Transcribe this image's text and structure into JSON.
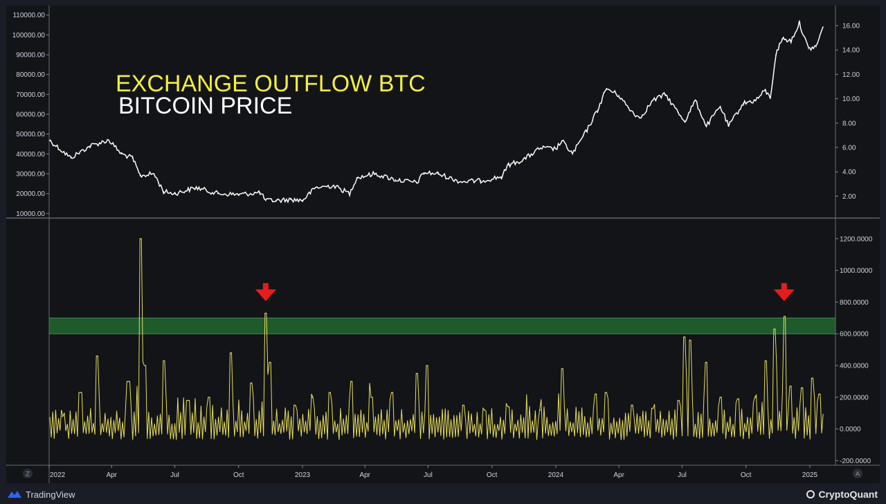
{
  "chart_data": [
    {
      "type": "line",
      "title": "BITCOIN PRICE",
      "series": [
        {
          "name": "BITCOIN PRICE",
          "color": "#ffffff",
          "x": [
            "2022-01-01",
            "2022-02-01",
            "2022-03-01",
            "2022-03-28",
            "2022-04-15",
            "2022-05-01",
            "2022-05-12",
            "2022-06-01",
            "2022-06-15",
            "2022-07-01",
            "2022-08-01",
            "2022-09-01",
            "2022-10-01",
            "2022-11-01",
            "2022-11-09",
            "2022-11-25",
            "2022-12-15",
            "2023-01-01",
            "2023-01-20",
            "2023-02-15",
            "2023-03-10",
            "2023-03-20",
            "2023-04-15",
            "2023-05-15",
            "2023-06-15",
            "2023-06-25",
            "2023-07-15",
            "2023-08-17",
            "2023-09-15",
            "2023-10-15",
            "2023-10-25",
            "2023-11-15",
            "2023-12-10",
            "2024-01-01",
            "2024-01-10",
            "2024-01-25",
            "2024-02-15",
            "2024-03-01",
            "2024-03-14",
            "2024-04-01",
            "2024-04-15",
            "2024-05-01",
            "2024-05-20",
            "2024-06-07",
            "2024-06-25",
            "2024-07-05",
            "2024-07-20",
            "2024-08-05",
            "2024-08-25",
            "2024-09-06",
            "2024-09-27",
            "2024-10-15",
            "2024-10-29",
            "2024-11-05",
            "2024-11-13",
            "2024-11-22",
            "2024-12-05",
            "2024-12-17",
            "2024-12-30",
            "2025-01-10",
            "2025-01-20"
          ],
          "values": [
            47000,
            38000,
            44000,
            47000,
            40000,
            38000,
            29000,
            30000,
            21000,
            20000,
            23000,
            20000,
            19500,
            20500,
            16500,
            16500,
            17000,
            16600,
            23000,
            24000,
            20000,
            28000,
            30000,
            27000,
            25500,
            30500,
            30000,
            26000,
            26500,
            28500,
            34500,
            37000,
            43000,
            42500,
            46500,
            40000,
            52000,
            62000,
            73000,
            69500,
            63000,
            58000,
            67000,
            70000,
            61000,
            56500,
            67000,
            54000,
            64000,
            54000,
            65500,
            67000,
            72000,
            68000,
            90000,
            98000,
            97000,
            106000,
            93000,
            94000,
            104000
          ]
        }
      ],
      "ylim": [
        8000,
        112000
      ],
      "yticks": [
        "10000.00",
        "20000.00",
        "30000.00",
        "40000.00",
        "50000.00",
        "60000.00",
        "70000.00",
        "80000.00",
        "90000.00",
        "100000.00",
        "110000.00"
      ],
      "yticks_right": [
        "2.00",
        "4.00",
        "6.00",
        "8.00",
        "10.00",
        "12.00",
        "14.00",
        "16.00"
      ]
    },
    {
      "type": "line",
      "title": "EXCHANGE OUTFLOW BTC",
      "series": [
        {
          "name": "EXCHANGE OUTFLOW BTC",
          "color": "#e8df5e",
          "peaks": [
            {
              "x": "2022-01-20",
              "y": 80
            },
            {
              "x": "2022-02-15",
              "y": 230
            },
            {
              "x": "2022-03-12",
              "y": 460
            },
            {
              "x": "2022-04-25",
              "y": 300
            },
            {
              "x": "2022-05-12",
              "y": 1200
            },
            {
              "x": "2022-05-20",
              "y": 400
            },
            {
              "x": "2022-06-15",
              "y": 430
            },
            {
              "x": "2022-07-20",
              "y": 180
            },
            {
              "x": "2022-08-20",
              "y": 200
            },
            {
              "x": "2022-09-20",
              "y": 480
            },
            {
              "x": "2022-10-20",
              "y": 290
            },
            {
              "x": "2022-11-09",
              "y": 730
            },
            {
              "x": "2022-11-15",
              "y": 420
            },
            {
              "x": "2022-12-20",
              "y": 150
            },
            {
              "x": "2023-01-15",
              "y": 200
            },
            {
              "x": "2023-02-10",
              "y": 230
            },
            {
              "x": "2023-03-12",
              "y": 300
            },
            {
              "x": "2023-04-10",
              "y": 200
            },
            {
              "x": "2023-05-10",
              "y": 230
            },
            {
              "x": "2023-06-15",
              "y": 350
            },
            {
              "x": "2023-06-30",
              "y": 400
            },
            {
              "x": "2023-08-20",
              "y": 150
            },
            {
              "x": "2023-09-20",
              "y": 120
            },
            {
              "x": "2023-10-25",
              "y": 140
            },
            {
              "x": "2023-12-10",
              "y": 120
            },
            {
              "x": "2024-01-11",
              "y": 380
            },
            {
              "x": "2024-02-28",
              "y": 220
            },
            {
              "x": "2024-03-14",
              "y": 230
            },
            {
              "x": "2024-04-20",
              "y": 150
            },
            {
              "x": "2024-05-20",
              "y": 130
            },
            {
              "x": "2024-06-25",
              "y": 180
            },
            {
              "x": "2024-07-05",
              "y": 580
            },
            {
              "x": "2024-07-12",
              "y": 560
            },
            {
              "x": "2024-08-05",
              "y": 420
            },
            {
              "x": "2024-08-25",
              "y": 200
            },
            {
              "x": "2024-09-20",
              "y": 190
            },
            {
              "x": "2024-10-15",
              "y": 200
            },
            {
              "x": "2024-10-29",
              "y": 430
            },
            {
              "x": "2024-11-12",
              "y": 630
            },
            {
              "x": "2024-11-25",
              "y": 710
            },
            {
              "x": "2024-12-05",
              "y": 270
            },
            {
              "x": "2024-12-20",
              "y": 260
            },
            {
              "x": "2025-01-05",
              "y": 320
            },
            {
              "x": "2025-01-15",
              "y": 220
            }
          ]
        }
      ],
      "ylim": [
        -220,
        1330
      ],
      "yticks": [
        "-200.0000",
        "0.0000",
        "200.0000",
        "400.0000",
        "600.0000",
        "800.0000",
        "1000.0000",
        "1200.0000"
      ],
      "highlight_band": {
        "from": 600,
        "to": 700,
        "color": "#1f5a2a"
      },
      "arrow_markers": [
        {
          "x": "2022-11-09",
          "color": "#e81c1c"
        },
        {
          "x": "2024-11-25",
          "color": "#e81c1c"
        }
      ]
    }
  ],
  "x_axis": {
    "range": [
      "2022-01-01",
      "2025-02-05"
    ],
    "ticks": [
      {
        "date": "2022-01-01",
        "label": "2022"
      },
      {
        "date": "2022-04-01",
        "label": "Apr"
      },
      {
        "date": "2022-07-01",
        "label": "Jul"
      },
      {
        "date": "2022-10-01",
        "label": "Oct"
      },
      {
        "date": "2023-01-01",
        "label": "2023"
      },
      {
        "date": "2023-04-01",
        "label": "Apr"
      },
      {
        "date": "2023-07-01",
        "label": "Jul"
      },
      {
        "date": "2023-10-01",
        "label": "Oct"
      },
      {
        "date": "2024-01-01",
        "label": "2024"
      },
      {
        "date": "2024-04-01",
        "label": "Apr"
      },
      {
        "date": "2024-07-01",
        "label": "Jul"
      },
      {
        "date": "2024-10-01",
        "label": "Oct"
      },
      {
        "date": "2025-01-01",
        "label": "2025"
      }
    ],
    "left_button": "Z",
    "right_button": "A"
  },
  "footer": {
    "left_brand": "TradingView",
    "right_brand": "CryptoQuant"
  }
}
